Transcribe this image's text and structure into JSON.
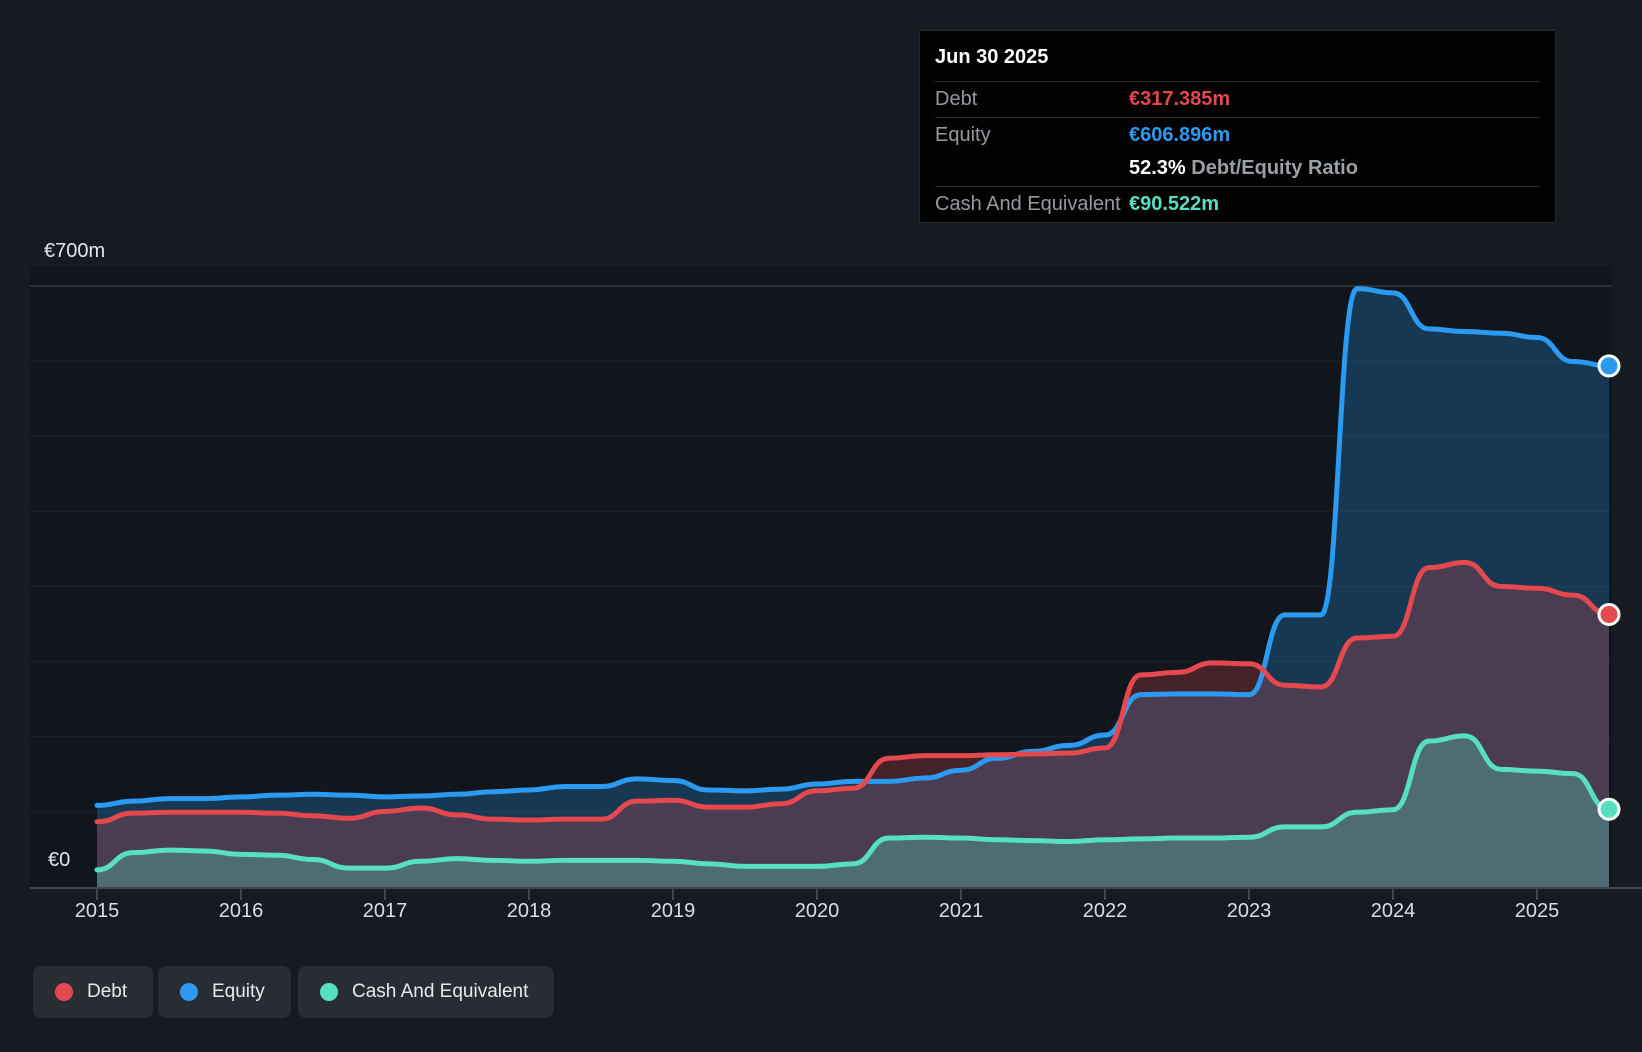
{
  "tooltip": {
    "date": "Jun 30 2025",
    "rows": [
      {
        "label": "Debt",
        "value": "€317.385m",
        "color": "#e5484d"
      },
      {
        "label": "Equity",
        "value": "€606.896m",
        "color": "#2b9af0"
      },
      {
        "label": "Cash And Equivalent",
        "value": "€90.522m",
        "color": "#57dfc2"
      }
    ],
    "ratio_value": "52.3%",
    "ratio_label": "Debt/Equity Ratio"
  },
  "y_axis": {
    "top_label": "€700m",
    "zero_label": "€0"
  },
  "x_axis": {
    "tick_labels": [
      "2015",
      "2016",
      "2017",
      "2018",
      "2019",
      "2020",
      "2021",
      "2022",
      "2023",
      "2024",
      "2025"
    ]
  },
  "legend": [
    {
      "label": "Debt",
      "color": "#e5484d"
    },
    {
      "label": "Equity",
      "color": "#2b9af0"
    },
    {
      "label": "Cash And Equivalent",
      "color": "#57dfc2"
    }
  ],
  "colors": {
    "background": "#161b22",
    "plot_background": "#11161d",
    "debt": "#e5484d",
    "equity": "#2b9af0",
    "cash": "#57dfc2",
    "gridline": "rgba(255,255,255,0.05)",
    "axis": "#42474e"
  },
  "chart_data": {
    "type": "area",
    "y_units": "€m",
    "ylim": [
      0,
      700
    ],
    "grid": "horizontal",
    "legend_position": "bottom",
    "x_ticks": [
      2015,
      2016,
      2017,
      2018,
      2019,
      2020,
      2021,
      2022,
      2023,
      2024,
      2025
    ],
    "x": [
      2015.0,
      2015.25,
      2015.5,
      2015.75,
      2016.0,
      2016.25,
      2016.5,
      2016.75,
      2017.0,
      2017.25,
      2017.5,
      2017.75,
      2018.0,
      2018.25,
      2018.5,
      2018.75,
      2019.0,
      2019.25,
      2019.5,
      2019.75,
      2020.0,
      2020.25,
      2020.5,
      2020.75,
      2021.0,
      2021.25,
      2021.5,
      2021.75,
      2022.0,
      2022.25,
      2022.5,
      2022.75,
      2023.0,
      2023.25,
      2023.5,
      2023.75,
      2024.0,
      2024.25,
      2024.5,
      2024.75,
      2025.0,
      2025.25,
      2025.5
    ],
    "series": [
      {
        "name": "Debt",
        "color": "#e5484d",
        "values": [
          76,
          86,
          87,
          87,
          87,
          86,
          83,
          80,
          88,
          92,
          84,
          79,
          78,
          79,
          79,
          100,
          101,
          93,
          93,
          97,
          112,
          115,
          150,
          153,
          153,
          154,
          155,
          156,
          162,
          247,
          250,
          261,
          260,
          235,
          233,
          290,
          292,
          372,
          378,
          350,
          348,
          340,
          317.385
        ]
      },
      {
        "name": "Equity",
        "color": "#2b9af0",
        "values": [
          95,
          100,
          103,
          103,
          105,
          107,
          108,
          107,
          105,
          106,
          108,
          111,
          113,
          117,
          117,
          126,
          124,
          113,
          112,
          114,
          120,
          123,
          123,
          127,
          136,
          150,
          158,
          165,
          177,
          224,
          225,
          225,
          224,
          317,
          317,
          697,
          692,
          650,
          647,
          645,
          640,
          612,
          606.896
        ]
      },
      {
        "name": "Cash And Equivalent",
        "color": "#57dfc2",
        "values": [
          20,
          40,
          43,
          42,
          38,
          37,
          32,
          22,
          22,
          30,
          33,
          31,
          30,
          31,
          31,
          31,
          30,
          27,
          24,
          24,
          24,
          27,
          57,
          58,
          57,
          55,
          54,
          53,
          55,
          56,
          57,
          57,
          58,
          70,
          70,
          87,
          90,
          170,
          176,
          137,
          135,
          132,
          90.522
        ]
      }
    ]
  }
}
